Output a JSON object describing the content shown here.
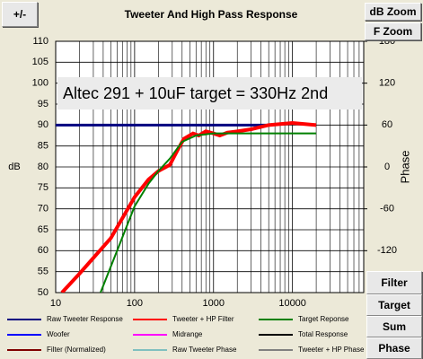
{
  "chart_data": {
    "type": "line",
    "title": "Tweeter  And High Pass Response",
    "annotation": "Altec 291 + 10uF  target = 330Hz 2nd",
    "y_label": "dB",
    "y2_label": "Phase",
    "log_x": true,
    "grid": true,
    "xlim": [
      10,
      80000
    ],
    "xticks": [
      10,
      100,
      1000,
      10000
    ],
    "ylim": [
      50,
      110
    ],
    "yticks": [
      50,
      55,
      60,
      65,
      70,
      75,
      80,
      85,
      90,
      95,
      100,
      105,
      110
    ],
    "y2lim": [
      -180,
      180
    ],
    "y2ticks": [
      -120,
      -60,
      0,
      60,
      120,
      180
    ],
    "series": [
      {
        "name": "Raw Tweeter Response",
        "color": "#000080",
        "x": [
          10,
          5000
        ],
        "values": [
          90,
          90
        ]
      },
      {
        "name": "Tweeter + HP Filter",
        "color": "#ff0000",
        "x": [
          12,
          20,
          50,
          100,
          150,
          200,
          280,
          350,
          420,
          550,
          650,
          800,
          1000,
          1200,
          1500,
          2000,
          3000,
          5000,
          10000,
          20000
        ],
        "values": [
          50,
          54.5,
          63,
          72.8,
          77,
          79,
          80.5,
          84,
          86.7,
          88,
          87.5,
          88.5,
          88,
          87.5,
          88.2,
          88.5,
          89,
          90,
          90.5,
          90
        ]
      },
      {
        "name": "Target Reponse",
        "color": "#008000",
        "x": [
          37,
          60,
          100,
          150,
          200,
          280,
          400,
          600,
          1000,
          20000
        ],
        "values": [
          50,
          60,
          70.6,
          76,
          79,
          82,
          86,
          87.5,
          88,
          88
        ]
      },
      {
        "name": "Woofer",
        "color": "#0000ff",
        "x": [],
        "values": []
      },
      {
        "name": "Midrange",
        "color": "#ff00ff",
        "x": [],
        "values": []
      },
      {
        "name": "Total Response",
        "color": "#000000",
        "x": [],
        "values": []
      },
      {
        "name": "Filter (Normalized)",
        "color": "#800000",
        "x": [],
        "values": []
      },
      {
        "name": "Raw Tweeter Phase",
        "color": "#80c0c0",
        "x": [],
        "values": []
      },
      {
        "name": "Tweeter + HP Phase",
        "color": "#808080",
        "x": [],
        "values": []
      }
    ]
  },
  "buttons": [
    "+/-",
    "dB Zoom",
    "F Zoom",
    "Filter",
    "Target",
    "Sum",
    "Phase"
  ]
}
